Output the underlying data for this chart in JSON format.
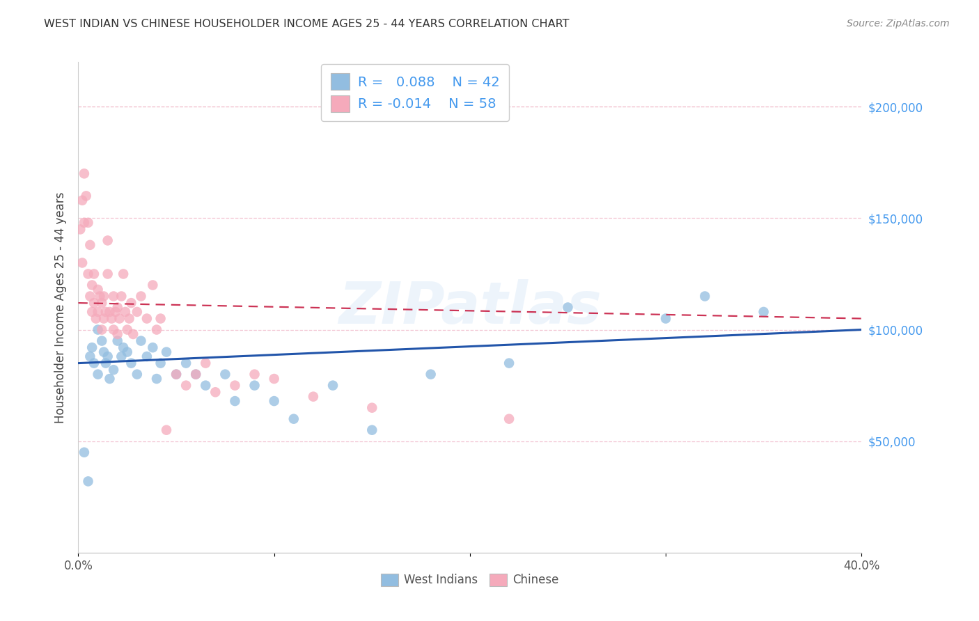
{
  "title": "WEST INDIAN VS CHINESE HOUSEHOLDER INCOME AGES 25 - 44 YEARS CORRELATION CHART",
  "source": "Source: ZipAtlas.com",
  "ylabel": "Householder Income Ages 25 - 44 years",
  "xlim": [
    0.0,
    0.4
  ],
  "ylim": [
    0,
    220000
  ],
  "xticks": [
    0.0,
    0.1,
    0.2,
    0.3,
    0.4
  ],
  "xtick_labels": [
    "0.0%",
    "",
    "",
    "",
    "40.0%"
  ],
  "ytick_positions_right": [
    50000,
    100000,
    150000,
    200000
  ],
  "ytick_labels_right": [
    "$50,000",
    "$100,000",
    "$150,000",
    "$200,000"
  ],
  "blue_color": "#92bde0",
  "pink_color": "#f5aabb",
  "blue_line_color": "#2255aa",
  "pink_line_color": "#cc3355",
  "R_blue": 0.088,
  "N_blue": 42,
  "R_pink": -0.014,
  "N_pink": 58,
  "watermark": "ZIPatlas",
  "legend_label_blue": "West Indians",
  "legend_label_pink": "Chinese",
  "background_color": "#ffffff",
  "right_label_color": "#4499ee",
  "title_color": "#333333",
  "blue_scatter_x": [
    0.003,
    0.005,
    0.006,
    0.007,
    0.008,
    0.01,
    0.01,
    0.012,
    0.013,
    0.014,
    0.015,
    0.016,
    0.018,
    0.02,
    0.022,
    0.023,
    0.025,
    0.027,
    0.03,
    0.032,
    0.035,
    0.038,
    0.04,
    0.042,
    0.045,
    0.05,
    0.055,
    0.06,
    0.065,
    0.075,
    0.08,
    0.09,
    0.1,
    0.11,
    0.13,
    0.15,
    0.18,
    0.22,
    0.25,
    0.3,
    0.32,
    0.35
  ],
  "blue_scatter_y": [
    45000,
    32000,
    88000,
    92000,
    85000,
    80000,
    100000,
    95000,
    90000,
    85000,
    88000,
    78000,
    82000,
    95000,
    88000,
    92000,
    90000,
    85000,
    80000,
    95000,
    88000,
    92000,
    78000,
    85000,
    90000,
    80000,
    85000,
    80000,
    75000,
    80000,
    68000,
    75000,
    68000,
    60000,
    75000,
    55000,
    80000,
    85000,
    110000,
    105000,
    115000,
    108000
  ],
  "pink_scatter_x": [
    0.001,
    0.002,
    0.002,
    0.003,
    0.003,
    0.004,
    0.005,
    0.005,
    0.006,
    0.006,
    0.007,
    0.007,
    0.008,
    0.008,
    0.009,
    0.01,
    0.01,
    0.011,
    0.012,
    0.012,
    0.013,
    0.013,
    0.014,
    0.015,
    0.015,
    0.016,
    0.017,
    0.018,
    0.018,
    0.019,
    0.02,
    0.02,
    0.021,
    0.022,
    0.023,
    0.024,
    0.025,
    0.026,
    0.027,
    0.028,
    0.03,
    0.032,
    0.035,
    0.038,
    0.04,
    0.042,
    0.045,
    0.05,
    0.055,
    0.06,
    0.065,
    0.07,
    0.08,
    0.09,
    0.1,
    0.12,
    0.15,
    0.22
  ],
  "pink_scatter_y": [
    145000,
    158000,
    130000,
    170000,
    148000,
    160000,
    148000,
    125000,
    138000,
    115000,
    120000,
    108000,
    112000,
    125000,
    105000,
    118000,
    108000,
    115000,
    100000,
    112000,
    105000,
    115000,
    108000,
    140000,
    125000,
    108000,
    105000,
    115000,
    100000,
    108000,
    98000,
    110000,
    105000,
    115000,
    125000,
    108000,
    100000,
    105000,
    112000,
    98000,
    108000,
    115000,
    105000,
    120000,
    100000,
    105000,
    55000,
    80000,
    75000,
    80000,
    85000,
    72000,
    75000,
    80000,
    78000,
    70000,
    65000,
    60000
  ]
}
